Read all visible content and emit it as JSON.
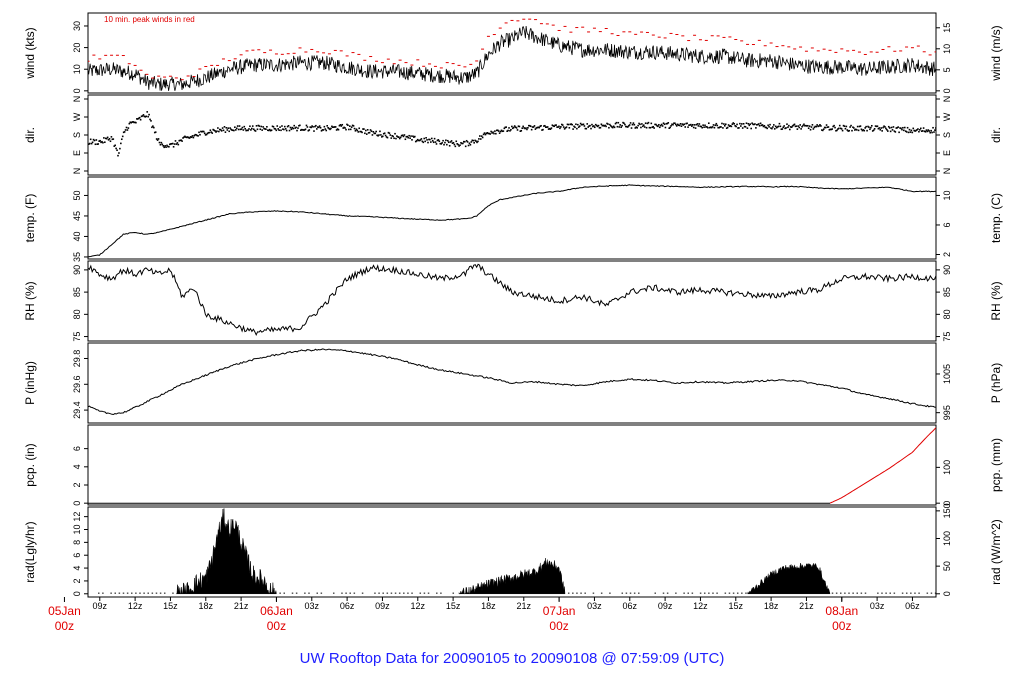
{
  "chart_data": {
    "type": "line",
    "title": "UW Rooftop Data for 20090105  to  20090108 @ 07:59:09  (UTC)",
    "x_hours": [
      0,
      72
    ],
    "time_ticks": [
      "09z",
      "12z",
      "15z",
      "18z",
      "21z",
      "00z",
      "03z",
      "06z",
      "09z",
      "12z",
      "15z",
      "18z",
      "21z",
      "00z",
      "03z",
      "06z",
      "09z",
      "12z",
      "15z",
      "18z",
      "21z",
      "00z",
      "03z",
      "06z"
    ],
    "day_markers": [
      {
        "hour": -3,
        "day": "05Jan",
        "hr": "00z"
      },
      {
        "hour": 15,
        "day": "06Jan",
        "hr": "00z"
      },
      {
        "hour": 39,
        "day": "07Jan",
        "hr": "00z"
      },
      {
        "hour": 63,
        "day": "08Jan",
        "hr": "00z"
      }
    ],
    "panels": [
      {
        "id": "wind",
        "left_label": "wind (kts)",
        "right_label": "wind (m/s)",
        "annotation": "10 min. peak winds in red",
        "ylim": [
          -1,
          36
        ],
        "left_ticks": [
          "0",
          "10",
          "20",
          "30"
        ],
        "left_tick_values": [
          0,
          10,
          20,
          30
        ],
        "right_ticks": [
          "0",
          "5",
          "10",
          "15"
        ],
        "right_tick_values": [
          0,
          9.72,
          19.44,
          29.16
        ],
        "series": [
          {
            "style": "noisy",
            "color": "#000000",
            "noise": 3.5,
            "x": [
              0,
              2,
              3,
              4,
              5,
              6,
              8,
              10,
              12,
              14,
              16,
              18,
              20,
              22,
              24,
              26,
              28,
              30,
              32,
              33,
              34,
              35,
              36,
              37,
              38,
              40,
              42,
              44,
              46,
              48,
              50,
              52,
              54,
              56,
              58,
              60,
              62,
              64,
              66,
              68,
              70,
              72
            ],
            "y": [
              9,
              10,
              9,
              8,
              4,
              3,
              3,
              6,
              10,
              12,
              12,
              13,
              13,
              11,
              9,
              9,
              8,
              7,
              6,
              8,
              17,
              22,
              24,
              27,
              25,
              21,
              19,
              19,
              18,
              18,
              17,
              16,
              16,
              14,
              14,
              12,
              11,
              11,
              10,
              11,
              12,
              10
            ]
          },
          {
            "style": "dots",
            "color": "#e00000",
            "x": [
              0,
              2,
              3,
              4,
              5,
              6,
              8,
              10,
              12,
              14,
              16,
              18,
              20,
              22,
              24,
              26,
              28,
              30,
              32,
              33,
              34,
              35,
              36,
              37,
              38,
              40,
              42,
              44,
              46,
              48,
              50,
              52,
              54,
              56,
              58,
              60,
              62,
              64,
              66,
              68,
              70,
              72
            ],
            "y": [
              15,
              16,
              15,
              12,
              7,
              6,
              6,
              10,
              15,
              18,
              18,
              19,
              19,
              17,
              15,
              14,
              13,
              12,
              11,
              14,
              25,
              30,
              33,
              34,
              33,
              29,
              28,
              28,
              26,
              26,
              25,
              24,
              24,
              22,
              22,
              20,
              19,
              19,
              18,
              19,
              20,
              17
            ]
          }
        ]
      },
      {
        "id": "dir",
        "left_label": "dir.",
        "right_label": "dir.",
        "ylim": [
          -20,
          380
        ],
        "left_ticks": [
          "N",
          "E",
          "S",
          "W",
          "N"
        ],
        "left_tick_values": [
          0,
          90,
          180,
          270,
          360
        ],
        "right_ticks": [
          "N",
          "E",
          "S",
          "W",
          "N"
        ],
        "right_tick_values": [
          0,
          90,
          180,
          270,
          360
        ],
        "series": [
          {
            "style": "scatter",
            "color": "#000000",
            "noise": 14,
            "x": [
              0,
              1,
              2,
              2.5,
              3,
              3.5,
              4,
              5,
              6,
              7,
              8,
              10,
              12,
              14,
              16,
              18,
              20,
              22,
              24,
              26,
              28,
              30,
              31,
              32,
              33,
              34,
              36,
              40,
              44,
              48,
              52,
              56,
              60,
              64,
              68,
              70,
              72
            ],
            "y": [
              150,
              150,
              170,
              80,
              200,
              240,
              250,
              290,
              140,
              130,
              160,
              200,
              215,
              218,
              218,
              220,
              215,
              225,
              195,
              180,
              160,
              150,
              140,
              140,
              160,
              200,
              215,
              225,
              232,
              232,
              232,
              230,
              225,
              218,
              215,
              205,
              210
            ]
          }
        ]
      },
      {
        "id": "temp",
        "left_label": "temp. (F)",
        "right_label": "temp. (C)",
        "ylim": [
          34.5,
          54.5
        ],
        "left_ticks": [
          "35",
          "40",
          "45",
          "50"
        ],
        "left_tick_values": [
          35,
          40,
          45,
          50
        ],
        "right_ticks": [
          "2",
          "6",
          "10"
        ],
        "right_tick_values": [
          35.6,
          42.8,
          50
        ],
        "series": [
          {
            "style": "line",
            "color": "#000000",
            "noise": 0.1,
            "x": [
              0,
              1,
              2,
              3,
              4,
              5,
              6,
              8,
              10,
              12,
              14,
              16,
              18,
              20,
              22,
              24,
              26,
              28,
              30,
              32,
              32.5,
              33,
              34,
              35,
              36,
              38,
              40,
              42,
              44,
              46,
              48,
              50,
              52,
              54,
              56,
              58,
              60,
              62,
              64,
              66,
              68,
              70,
              72
            ],
            "y": [
              35,
              35.5,
              38,
              40.5,
              41,
              40.5,
              41,
              42.5,
              44,
              45.5,
              46,
              46.2,
              46,
              45.5,
              45,
              44.8,
              44.5,
              44.2,
              44,
              44.3,
              44.5,
              45,
              47.5,
              49,
              49.5,
              50.5,
              51,
              52,
              52.3,
              52.5,
              52.3,
              52.2,
              52,
              52.1,
              52.2,
              52.1,
              52.2,
              51.8,
              51.6,
              51.8,
              52,
              51,
              51
            ]
          }
        ]
      },
      {
        "id": "rh",
        "left_label": "RH (%)",
        "right_label": "RH (%)",
        "ylim": [
          74,
          92
        ],
        "left_ticks": [
          "75",
          "80",
          "85",
          "90"
        ],
        "left_tick_values": [
          75,
          80,
          85,
          90
        ],
        "right_ticks": [
          "75",
          "80",
          "85",
          "90"
        ],
        "right_tick_values": [
          75,
          80,
          85,
          90
        ],
        "series": [
          {
            "style": "line",
            "color": "#000000",
            "noise": 0.7,
            "x": [
              0,
              1,
              2,
              3,
              4,
              5,
              6,
              7,
              8,
              9,
              10,
              11,
              12,
              13,
              14,
              16,
              18,
              20,
              21,
              22,
              24,
              26,
              28,
              30,
              32,
              32.5,
              33,
              34,
              36,
              38,
              40,
              42,
              44,
              46,
              48,
              50,
              52,
              54,
              56,
              58,
              60,
              62,
              64,
              66,
              68,
              70,
              72
            ],
            "y": [
              91,
              89,
              88,
              90,
              89,
              90,
              89,
              90,
              84,
              86,
              80,
              79,
              78,
              77,
              76,
              76.5,
              77,
              82,
              85,
              88,
              90.5,
              90,
              89,
              88,
              89,
              90.5,
              91,
              89,
              85,
              84,
              83,
              84,
              82,
              85,
              86,
              85,
              85.5,
              85,
              84.5,
              84,
              85,
              85.5,
              88,
              88.5,
              88,
              88.5,
              88
            ]
          }
        ]
      },
      {
        "id": "pres",
        "left_label": "P (inHg)",
        "right_label": "P (hPa)",
        "ylim": [
          29.3,
          29.92
        ],
        "left_ticks": [
          "29.4",
          "29.6",
          "29.8"
        ],
        "left_tick_values": [
          29.4,
          29.6,
          29.8
        ],
        "right_ticks": [
          "995",
          "1005"
        ],
        "right_tick_values": [
          29.38,
          29.68
        ],
        "series": [
          {
            "style": "line",
            "color": "#000000",
            "noise": 0.006,
            "x": [
              0,
              1,
              2,
              3,
              4,
              6,
              8,
              10,
              12,
              14,
              16,
              18,
              20,
              22,
              24,
              26,
              28,
              30,
              32,
              34,
              36,
              38,
              40,
              42,
              44,
              46,
              48,
              50,
              52,
              54,
              56,
              58,
              60,
              62,
              64,
              66,
              68,
              70,
              72
            ],
            "y": [
              29.43,
              29.39,
              29.37,
              29.38,
              29.42,
              29.51,
              29.6,
              29.67,
              29.74,
              29.79,
              29.83,
              29.86,
              29.87,
              29.86,
              29.83,
              29.8,
              29.75,
              29.71,
              29.68,
              29.65,
              29.61,
              29.62,
              29.6,
              29.59,
              29.62,
              29.64,
              29.63,
              29.61,
              29.62,
              29.61,
              29.62,
              29.63,
              29.63,
              29.6,
              29.57,
              29.52,
              29.49,
              29.45,
              29.42
            ]
          }
        ]
      },
      {
        "id": "pcp",
        "left_label": "pcp. (in)",
        "right_label": "pcp. (mm)",
        "ylim": [
          -0.2,
          8.6
        ],
        "left_ticks": [
          "0",
          "2",
          "4",
          "6"
        ],
        "left_tick_values": [
          0,
          2,
          4,
          6
        ],
        "right_ticks": [
          "0",
          "100"
        ],
        "right_tick_values": [
          0,
          3.94
        ],
        "series": [
          {
            "style": "line",
            "color": "#000000",
            "noise": 0,
            "x": [
              0,
              63
            ],
            "y": [
              0,
              0
            ]
          },
          {
            "style": "line",
            "color": "#e00000",
            "noise": 0,
            "x": [
              63,
              64,
              66,
              68,
              70,
              71,
              72
            ],
            "y": [
              0,
              0.6,
              2.2,
              3.8,
              5.6,
              7.0,
              8.3
            ]
          }
        ]
      },
      {
        "id": "rad",
        "left_label": "rad(Lgly/hr)",
        "right_label": "rad (W/m^2)",
        "ylim": [
          -0.5,
          13.5
        ],
        "left_ticks": [
          "0",
          "2",
          "4",
          "6",
          "8",
          "10",
          "12"
        ],
        "left_tick_values": [
          0,
          2,
          4,
          6,
          8,
          10,
          12
        ],
        "right_ticks": [
          "0",
          "50",
          "100",
          "150"
        ],
        "right_tick_values": [
          0,
          4.3,
          8.6,
          12.9
        ],
        "series": [
          {
            "style": "fill",
            "color": "#000000",
            "noise": 1.5,
            "x": [
              7.5,
              8.5,
              9,
              10,
              10.5,
              11,
              11.5,
              12,
              12.5,
              13,
              14,
              15,
              15.5,
              16
            ],
            "y": [
              0,
              0.5,
              1.5,
              2.5,
              5,
              9,
              12,
              10,
              11,
              8,
              3,
              2,
              0.5,
              0
            ]
          },
          {
            "style": "fill",
            "color": "#000000",
            "noise": 0.8,
            "x": [
              31.5,
              33,
              34,
              35,
              36,
              37,
              38,
              39,
              40,
              40.5
            ],
            "y": [
              0,
              0.8,
              1.5,
              2,
              2.5,
              3,
              3.5,
              5,
              4,
              0
            ]
          },
          {
            "style": "fill",
            "color": "#000000",
            "noise": 0.5,
            "x": [
              56,
              57,
              58,
              59,
              60,
              61,
              62,
              62.5,
              63
            ],
            "y": [
              0,
              1.5,
              3,
              4,
              4.2,
              4.4,
              4.3,
              2,
              0
            ]
          }
        ]
      }
    ]
  }
}
